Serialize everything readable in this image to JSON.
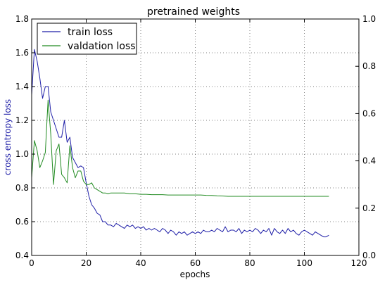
{
  "chart_data": {
    "type": "line",
    "title": "pretrained weights",
    "xlabel": "epochs",
    "ylabel": "cross entropy loss",
    "xlim": [
      0,
      120
    ],
    "ylim": [
      0.4,
      1.8
    ],
    "y2lim": [
      0.0,
      1.0
    ],
    "grid": true,
    "legend_position": "top-left",
    "x_ticks": [
      0,
      20,
      40,
      60,
      80,
      100,
      120
    ],
    "y_ticks": [
      0.4,
      0.6,
      0.8,
      1.0,
      1.2,
      1.4,
      1.6,
      1.8
    ],
    "y2_ticks": [
      0.0,
      0.2,
      0.4,
      0.6,
      0.8,
      1.0
    ],
    "x_tick_labels": [
      "0",
      "20",
      "40",
      "60",
      "80",
      "100",
      "120"
    ],
    "y_tick_labels": [
      "0.4",
      "0.6",
      "0.8",
      "1.0",
      "1.2",
      "1.4",
      "1.6",
      "1.8"
    ],
    "y2_tick_labels": [
      "0.0",
      "0.2",
      "0.4",
      "0.6",
      "0.8",
      "1.0"
    ],
    "series": [
      {
        "name": "train loss",
        "color": "#1f1fa8",
        "x": [
          0,
          1,
          2,
          3,
          4,
          5,
          6,
          7,
          8,
          9,
          10,
          11,
          12,
          13,
          14,
          15,
          16,
          17,
          18,
          19,
          20,
          21,
          22,
          23,
          24,
          25,
          26,
          27,
          28,
          29,
          30,
          31,
          32,
          33,
          34,
          35,
          36,
          37,
          38,
          39,
          40,
          41,
          42,
          43,
          44,
          45,
          46,
          47,
          48,
          49,
          50,
          51,
          52,
          53,
          54,
          55,
          56,
          57,
          58,
          59,
          60,
          61,
          62,
          63,
          64,
          65,
          66,
          67,
          68,
          69,
          70,
          71,
          72,
          73,
          74,
          75,
          76,
          77,
          78,
          79,
          80,
          81,
          82,
          83,
          84,
          85,
          86,
          87,
          88,
          89,
          90,
          91,
          92,
          93,
          94,
          95,
          96,
          97,
          98,
          99,
          100,
          101,
          102,
          103,
          104,
          105,
          106,
          107,
          108,
          109
        ],
        "y": [
          1.35,
          1.62,
          1.55,
          1.45,
          1.33,
          1.4,
          1.4,
          1.25,
          1.2,
          1.15,
          1.1,
          1.1,
          1.2,
          1.07,
          1.1,
          0.98,
          0.95,
          0.92,
          0.93,
          0.92,
          0.83,
          0.75,
          0.7,
          0.68,
          0.65,
          0.64,
          0.6,
          0.6,
          0.58,
          0.58,
          0.57,
          0.59,
          0.58,
          0.57,
          0.56,
          0.58,
          0.57,
          0.58,
          0.56,
          0.57,
          0.56,
          0.57,
          0.55,
          0.56,
          0.55,
          0.56,
          0.55,
          0.54,
          0.56,
          0.55,
          0.53,
          0.55,
          0.54,
          0.52,
          0.54,
          0.53,
          0.54,
          0.52,
          0.53,
          0.54,
          0.53,
          0.54,
          0.53,
          0.55,
          0.54,
          0.54,
          0.55,
          0.54,
          0.56,
          0.55,
          0.54,
          0.57,
          0.54,
          0.55,
          0.55,
          0.54,
          0.56,
          0.53,
          0.55,
          0.54,
          0.55,
          0.54,
          0.56,
          0.55,
          0.53,
          0.55,
          0.54,
          0.56,
          0.52,
          0.56,
          0.54,
          0.53,
          0.55,
          0.53,
          0.56,
          0.54,
          0.55,
          0.53,
          0.52,
          0.54,
          0.55,
          0.54,
          0.53,
          0.52,
          0.54,
          0.53,
          0.52,
          0.51,
          0.51,
          0.52
        ]
      },
      {
        "name": "valdation loss",
        "color": "#228b22",
        "x": [
          0,
          1,
          2,
          3,
          4,
          5,
          6,
          7,
          8,
          9,
          10,
          11,
          12,
          13,
          14,
          15,
          16,
          17,
          18,
          19,
          20,
          21,
          22,
          23,
          24,
          25,
          26,
          27,
          28,
          29,
          30,
          32,
          34,
          36,
          38,
          40,
          42,
          44,
          46,
          48,
          50,
          52,
          54,
          56,
          58,
          60,
          62,
          64,
          66,
          68,
          70,
          72,
          74,
          76,
          78,
          80,
          85,
          90,
          95,
          100,
          105,
          109
        ],
        "y": [
          0.86,
          1.08,
          1.02,
          0.92,
          0.96,
          1.01,
          1.32,
          1.12,
          0.82,
          1.02,
          1.06,
          0.88,
          0.86,
          0.83,
          1.05,
          0.92,
          0.86,
          0.9,
          0.9,
          0.84,
          0.82,
          0.82,
          0.83,
          0.8,
          0.79,
          0.78,
          0.77,
          0.77,
          0.765,
          0.77,
          0.77,
          0.77,
          0.77,
          0.765,
          0.765,
          0.762,
          0.762,
          0.76,
          0.76,
          0.76,
          0.758,
          0.758,
          0.758,
          0.758,
          0.758,
          0.758,
          0.758,
          0.756,
          0.755,
          0.753,
          0.752,
          0.75,
          0.75,
          0.75,
          0.75,
          0.75,
          0.75,
          0.75,
          0.75,
          0.75,
          0.75,
          0.75
        ]
      }
    ]
  }
}
